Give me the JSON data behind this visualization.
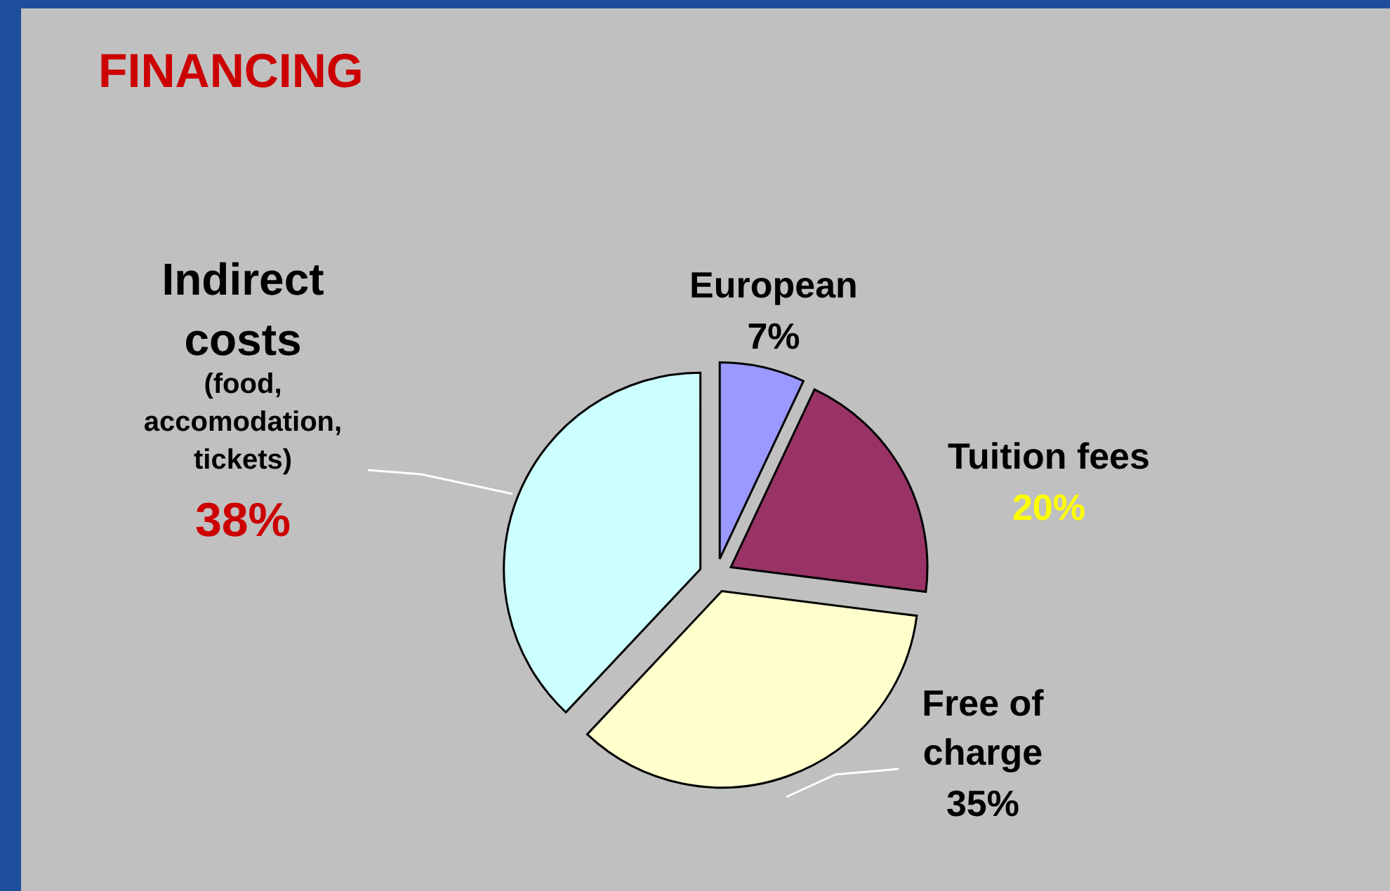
{
  "chart_data": {
    "type": "pie",
    "title": "FINANCING",
    "categories": [
      "European",
      "Tuition fees",
      "Free of charge",
      "Indirect costs (food, accomodation, tickets)"
    ],
    "values": [
      7,
      20,
      35,
      38
    ],
    "colors": [
      "#9999ff",
      "#993366",
      "#ffffcc",
      "#ccffff"
    ],
    "value_labels": [
      "7%",
      "20%",
      "35%",
      "38%"
    ]
  }
}
